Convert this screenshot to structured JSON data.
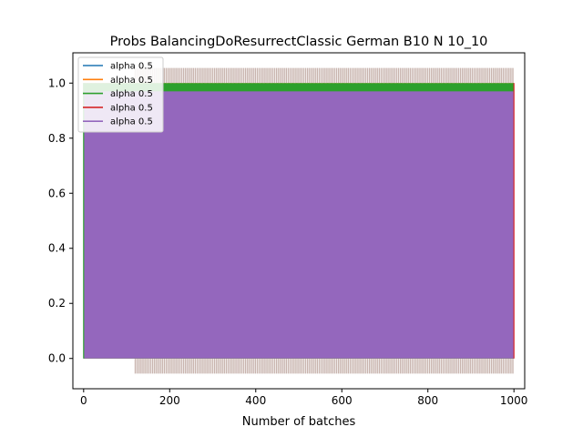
{
  "chart_data": {
    "type": "line",
    "title": "Probs BalancingDoResurrectClassic German B10 N 10_10",
    "xlabel": "Number of batches",
    "ylabel": "",
    "xlim": [
      -25,
      1025
    ],
    "ylim": [
      -0.11,
      1.11
    ],
    "x_ticks": [
      0,
      200,
      400,
      600,
      800,
      1000
    ],
    "x_tick_labels": [
      "0",
      "200",
      "400",
      "600",
      "800",
      "1000"
    ],
    "y_ticks": [
      0.0,
      0.2,
      0.4,
      0.6,
      0.8,
      1.0
    ],
    "y_tick_labels": [
      "0.0",
      "0.2",
      "0.4",
      "0.6",
      "0.8",
      "1.0"
    ],
    "grid": false,
    "legend_position": "top-left",
    "series": [
      {
        "name": "alpha 0.5",
        "color": "#1f77b4",
        "x_range": [
          0,
          1000
        ],
        "band": [
          0.0,
          0.97
        ],
        "start_oscillation": 0
      },
      {
        "name": "alpha 0.5",
        "color": "#ff7f0e",
        "x_range": [
          0,
          1000
        ],
        "band": [
          0.0,
          1.0
        ],
        "start_oscillation": 0
      },
      {
        "name": "alpha 0.5",
        "color": "#2ca02c",
        "x_range": [
          0,
          1000
        ],
        "band": [
          0.0,
          1.0
        ],
        "start_oscillation": 0
      },
      {
        "name": "alpha 0.5",
        "color": "#d62728",
        "x_range": [
          0,
          1000
        ],
        "band": [
          -0.055,
          1.055
        ],
        "start_oscillation": 120
      },
      {
        "name": "alpha 0.5",
        "color": "#9467bd",
        "x_range": [
          0,
          1000
        ],
        "band": [
          0.0,
          0.97
        ],
        "start_oscillation": 0
      }
    ],
    "notes_visible": "dense oscillation between bounds; faded overshoot ticks outside plotted band"
  }
}
